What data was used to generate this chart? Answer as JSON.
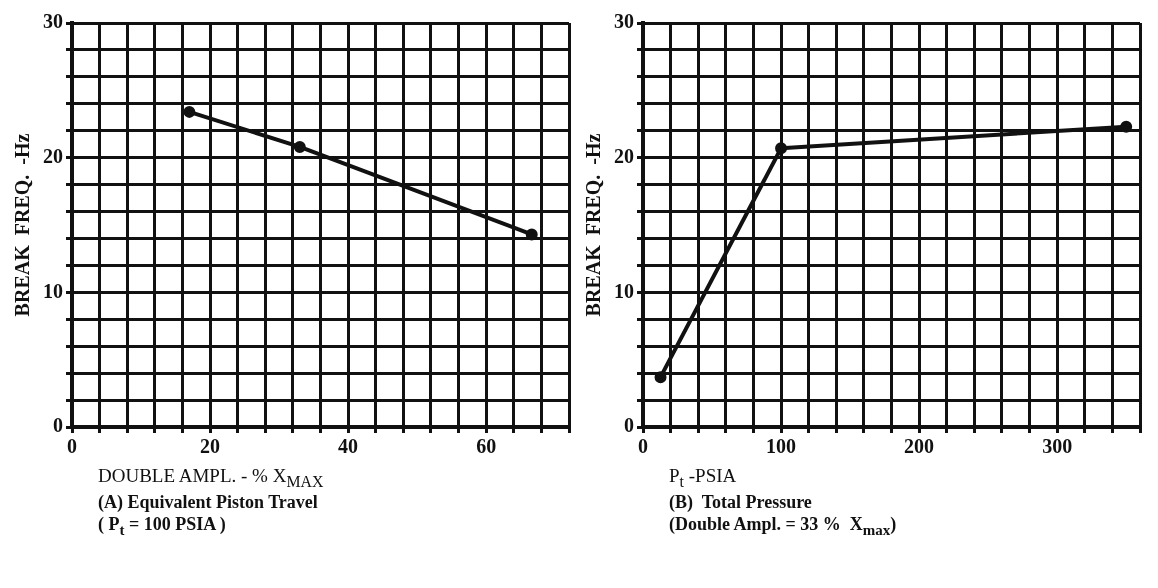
{
  "chart_data": [
    {
      "type": "line",
      "xlabel": "DOUBLE AMPL. - % X$_{MAX}$",
      "ylabel": "BREAK  FREQ.  -Hz",
      "annotations": [
        "(A) Equivalent Piston Travel",
        "( P$_{t}$ = 100 PSIA )"
      ],
      "x": [
        17,
        33,
        66.6
      ],
      "series": [
        {
          "color": "#111111",
          "values": [
            23.4,
            20.8,
            14.3
          ]
        }
      ],
      "xlim": [
        0,
        72
      ],
      "ylim": [
        0,
        30
      ],
      "xticks": [
        0,
        {
          "value": 4,
          "label": null
        },
        {
          "value": 8,
          "label": null
        },
        {
          "value": 12,
          "label": null
        },
        {
          "value": 16,
          "label": null
        },
        20,
        {
          "value": 24,
          "label": null
        },
        {
          "value": 28,
          "label": null
        },
        {
          "value": 32,
          "label": null
        },
        {
          "value": 36,
          "label": null
        },
        40,
        {
          "value": 44,
          "label": null
        },
        {
          "value": 48,
          "label": null
        },
        {
          "value": 52,
          "label": null
        },
        {
          "value": 56,
          "label": null
        },
        60,
        {
          "value": 64,
          "label": null
        },
        {
          "value": 68,
          "label": null
        },
        {
          "value": 72,
          "label": null
        }
      ],
      "yticks": [
        0,
        {
          "value": 2,
          "label": null
        },
        {
          "value": 4,
          "label": null
        },
        {
          "value": 6,
          "label": null
        },
        {
          "value": 8,
          "label": null
        },
        10,
        {
          "value": 12,
          "label": null
        },
        {
          "value": 14,
          "label": null
        },
        {
          "value": 16,
          "label": null
        },
        {
          "value": 18,
          "label": null
        },
        20,
        {
          "value": 22,
          "label": null
        },
        {
          "value": 24,
          "label": null
        },
        {
          "value": 26,
          "label": null
        },
        {
          "value": 28,
          "label": null
        },
        30
      ],
      "grid": true,
      "legend": false,
      "marker": "circle",
      "line_style": "solid"
    },
    {
      "type": "line",
      "xlabel": "P$_{t}$    -PSIA",
      "ylabel": "BREAK  FREQ.  -Hz",
      "annotations": [
        "(B)  Total Pressure",
        "(Double Ampl. = 33 %  X$_{max}$)"
      ],
      "x": [
        12.7,
        100,
        350
      ],
      "series": [
        {
          "color": "#111111",
          "values": [
            3.7,
            20.7,
            22.3
          ]
        }
      ],
      "xlim": [
        0,
        360
      ],
      "ylim": [
        0,
        30
      ],
      "xticks": [
        0,
        {
          "value": 20,
          "label": null
        },
        {
          "value": 40,
          "label": null
        },
        {
          "value": 60,
          "label": null
        },
        {
          "value": 80,
          "label": null
        },
        100,
        {
          "value": 120,
          "label": null
        },
        {
          "value": 140,
          "label": null
        },
        {
          "value": 160,
          "label": null
        },
        {
          "value": 180,
          "label": null
        },
        200,
        {
          "value": 220,
          "label": null
        },
        {
          "value": 240,
          "label": null
        },
        {
          "value": 260,
          "label": null
        },
        {
          "value": 280,
          "label": null
        },
        300,
        {
          "value": 320,
          "label": null
        },
        {
          "value": 340,
          "label": null
        },
        {
          "value": 360,
          "label": null
        }
      ],
      "yticks": [
        0,
        {
          "value": 2,
          "label": null
        },
        {
          "value": 4,
          "label": null
        },
        {
          "value": 6,
          "label": null
        },
        {
          "value": 8,
          "label": null
        },
        10,
        {
          "value": 12,
          "label": null
        },
        {
          "value": 14,
          "label": null
        },
        {
          "value": 16,
          "label": null
        },
        {
          "value": 18,
          "label": null
        },
        20,
        {
          "value": 22,
          "label": null
        },
        {
          "value": 24,
          "label": null
        },
        {
          "value": 26,
          "label": null
        },
        {
          "value": 28,
          "label": null
        },
        30
      ],
      "grid": true,
      "legend": false,
      "marker": "circle",
      "line_style": "solid"
    }
  ]
}
